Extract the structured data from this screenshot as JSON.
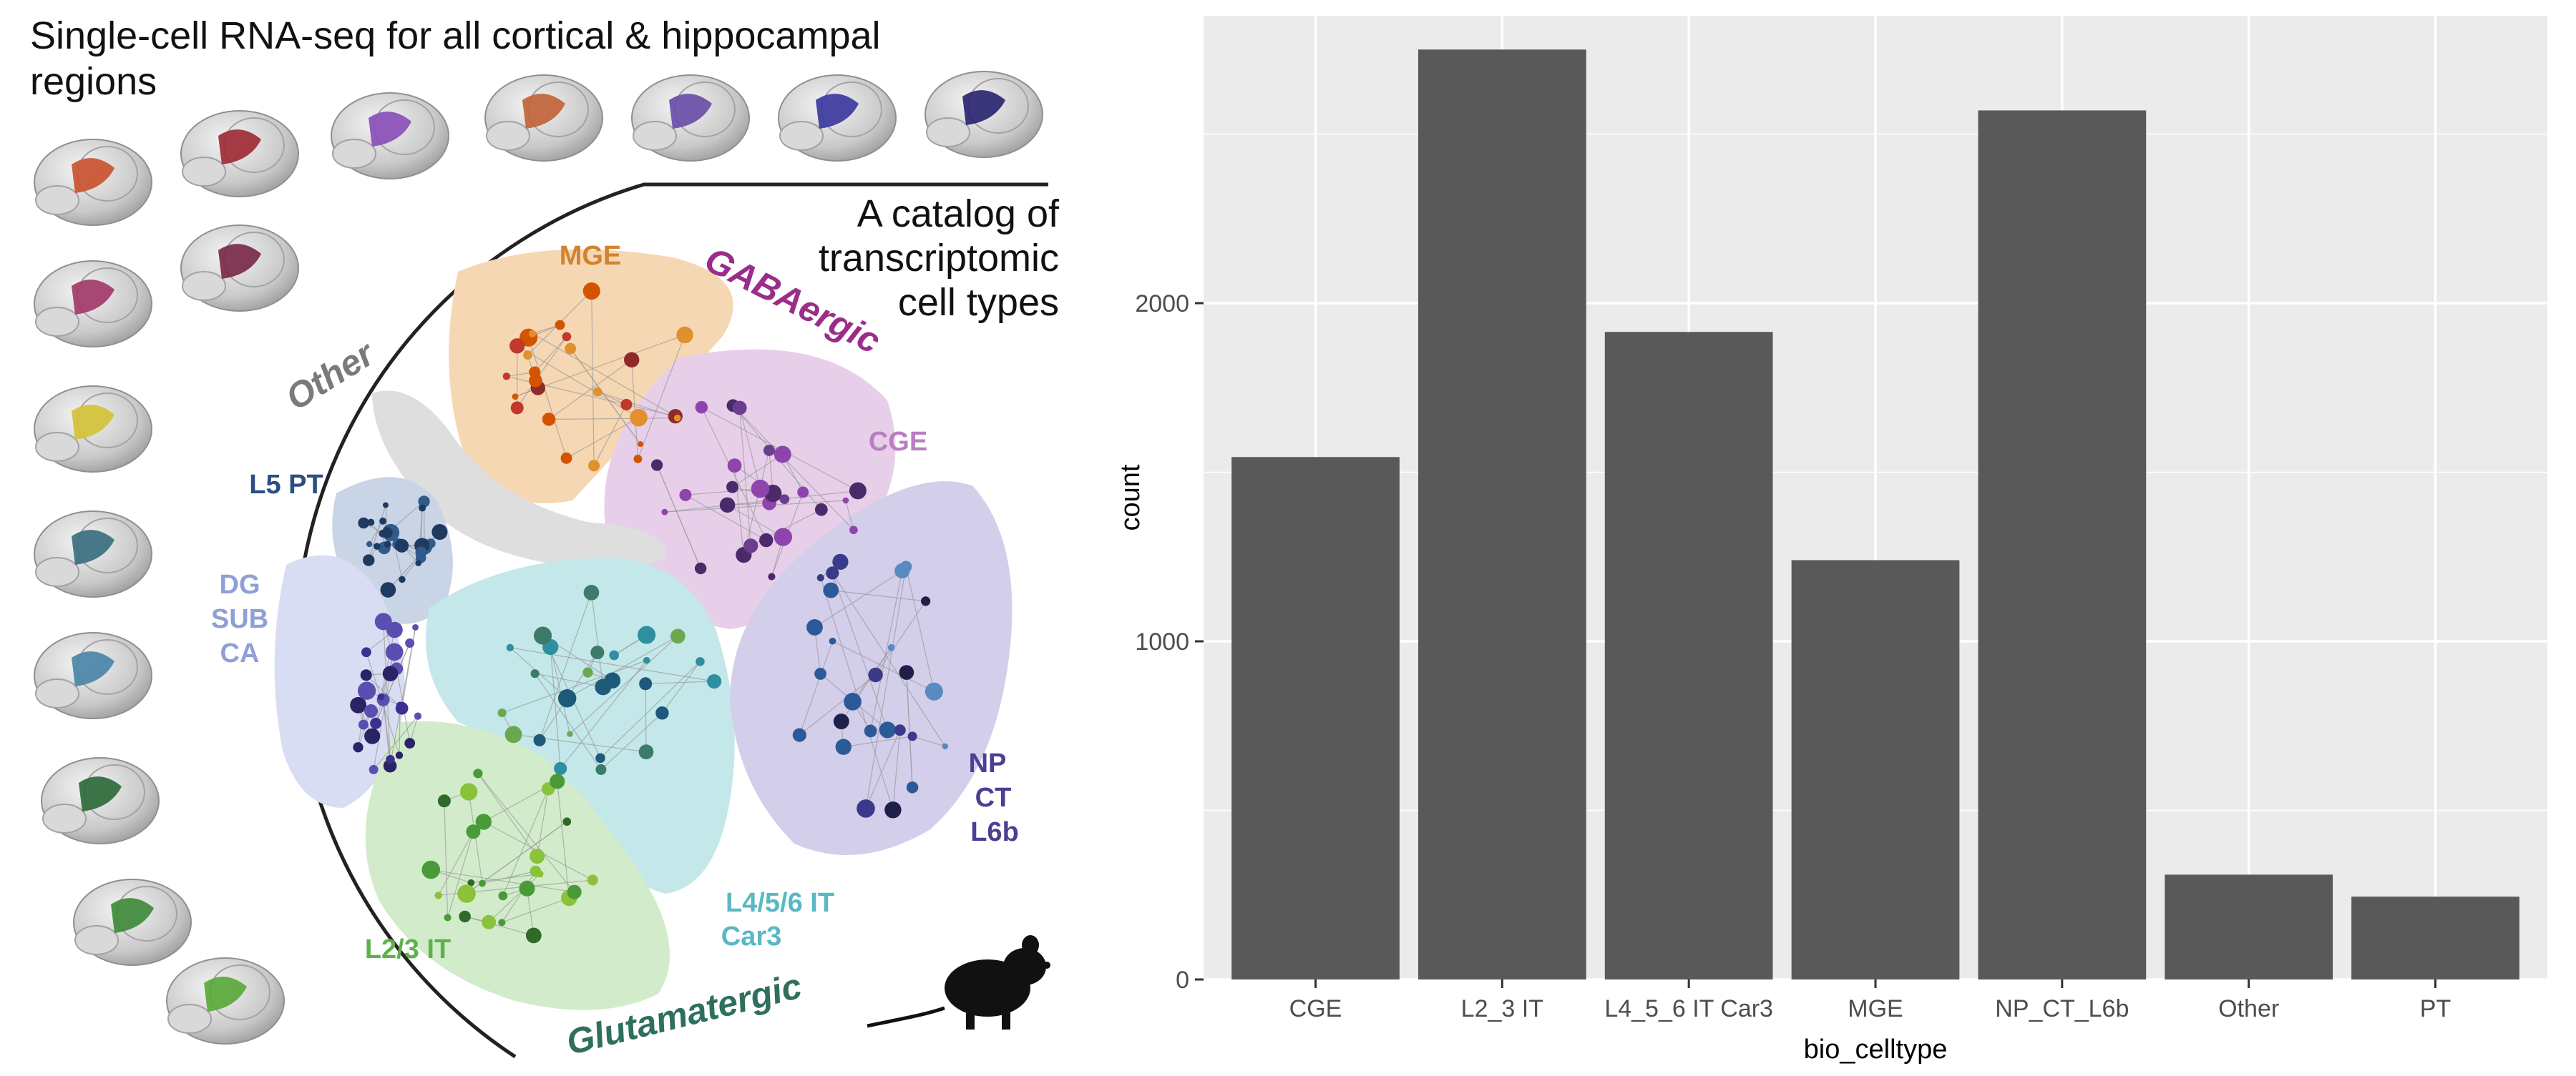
{
  "figure": {
    "title": "Single-cell RNA-seq for all cortical & hippocampal regions",
    "catalog_text": [
      "A catalog of",
      "transcriptomic",
      "cell types"
    ],
    "class_labels": [
      {
        "text": "GABAergic",
        "color": "#9b2d8a"
      },
      {
        "text": "Glutamatergic",
        "color": "#2f6f5e"
      },
      {
        "text": "Other",
        "color": "#7a7a7a"
      }
    ],
    "cluster_labels": [
      {
        "text": "MGE",
        "color": "#d2832e"
      },
      {
        "text": "CGE",
        "color": "#b77fbf"
      },
      {
        "text": "L5 PT",
        "color": "#2e4d86"
      },
      {
        "text": "DG",
        "color": "#8fa0d8"
      },
      {
        "text": "SUB",
        "color": "#8fa0d8"
      },
      {
        "text": "CA",
        "color": "#8fa0d8"
      },
      {
        "text": "NP",
        "color": "#4a3f93"
      },
      {
        "text": "CT",
        "color": "#4a3f93"
      },
      {
        "text": "L6b",
        "color": "#4a3f93"
      },
      {
        "text": "L2/3 IT",
        "color": "#5fb24a"
      },
      {
        "text": "L4/5/6 IT",
        "color": "#5ab8c4"
      },
      {
        "text": "Car3",
        "color": "#5ab8c4"
      }
    ],
    "region_colors": [
      "#c8532f",
      "#9e2b36",
      "#8a4fb8",
      "#c1643a",
      "#6a4ea8",
      "#3c3aa0",
      "#2b2670",
      "#a33a6a",
      "#7a2a4a",
      "#d4c23a",
      "#3b6f80",
      "#4a86a8",
      "#2f6a3a",
      "#3f8a3a",
      "#5aa83a"
    ]
  },
  "chart_data": {
    "type": "bar",
    "categories": [
      "CGE",
      "L2_3 IT",
      "L4_5_6 IT Car3",
      "MGE",
      "NP_CT_L6b",
      "Other",
      "PT"
    ],
    "values": [
      1545,
      2750,
      1915,
      1240,
      2570,
      310,
      245
    ],
    "xlabel": "bio_celltype",
    "ylabel": "count",
    "ylim": [
      0,
      2850
    ],
    "yticks": [
      0,
      1000,
      2000
    ],
    "grid": true,
    "bar_color": "#595959",
    "panel_color": "#ebebeb"
  }
}
